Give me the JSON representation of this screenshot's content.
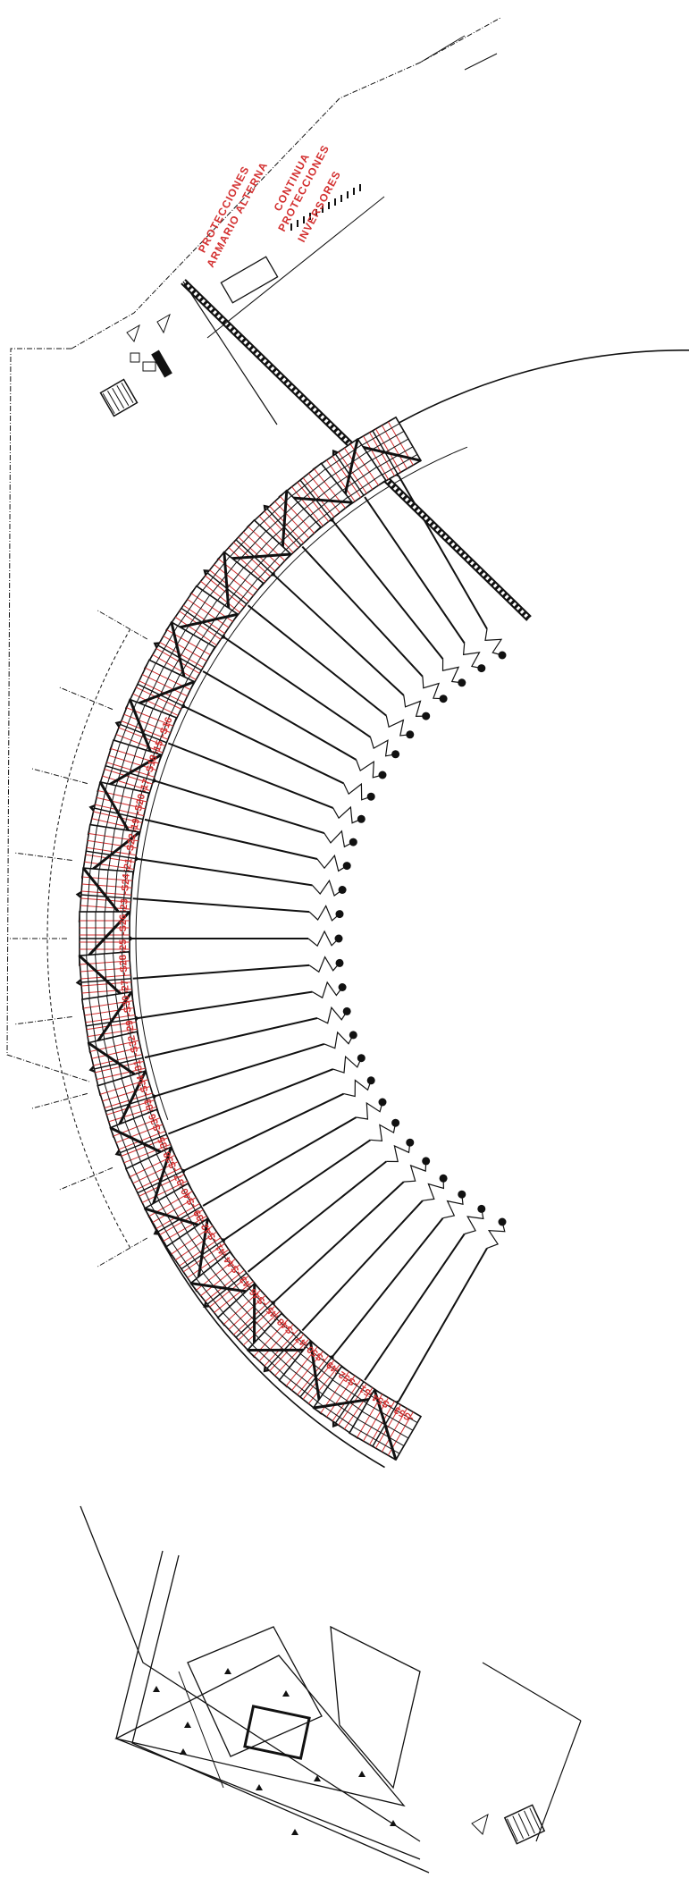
{
  "colors": {
    "background": "#ffffff",
    "line": "#111111",
    "accent": "#d32f2f"
  },
  "labels": {
    "armario_line1": "ARMARIO ALTERNA",
    "armario_line2": "PROTECCIONES",
    "protecciones_continua_line1": "PROTECCIONES",
    "protecciones_continua_line2": "CONTINUA",
    "inversores": "INVERSORES"
  },
  "panel_ids": [
    [
      "",
      ""
    ],
    [
      "",
      ""
    ],
    [
      "",
      ""
    ],
    [
      "",
      ""
    ],
    [
      "",
      ""
    ],
    [
      "",
      ""
    ],
    [
      "",
      ""
    ],
    [
      "",
      ""
    ],
    [
      "",
      ""
    ],
    [
      "-S15",
      "-S16"
    ],
    [
      "-S17",
      "-S18"
    ],
    [
      "-S19",
      "-S20"
    ],
    [
      "-S21",
      "-S22"
    ],
    [
      "-S23",
      "-S24"
    ],
    [
      "-S25",
      "-S26"
    ],
    [
      "-S27",
      "-S28"
    ],
    [
      "-S29",
      "-S30"
    ],
    [
      "-S31",
      "-S32"
    ],
    [
      "-S33",
      "-S34"
    ],
    [
      "-S35",
      "-S36"
    ],
    [
      "-S37",
      "-S38"
    ],
    [
      "-S39",
      "-S40"
    ],
    [
      "-S41",
      "-S42"
    ],
    [
      "-S43",
      "-S44"
    ],
    [
      "-S45",
      "-S46"
    ],
    [
      "-S47",
      "-S48"
    ],
    [
      "-S49",
      "-S50"
    ],
    [
      "-S51",
      "-S52"
    ],
    [
      "-S53",
      "-S54"
    ]
  ],
  "icons": {
    "inverter": "inverter-icon",
    "cabinet": "cabinet-icon",
    "ground": "ground-rod-icon",
    "tree": "tree-icon"
  }
}
